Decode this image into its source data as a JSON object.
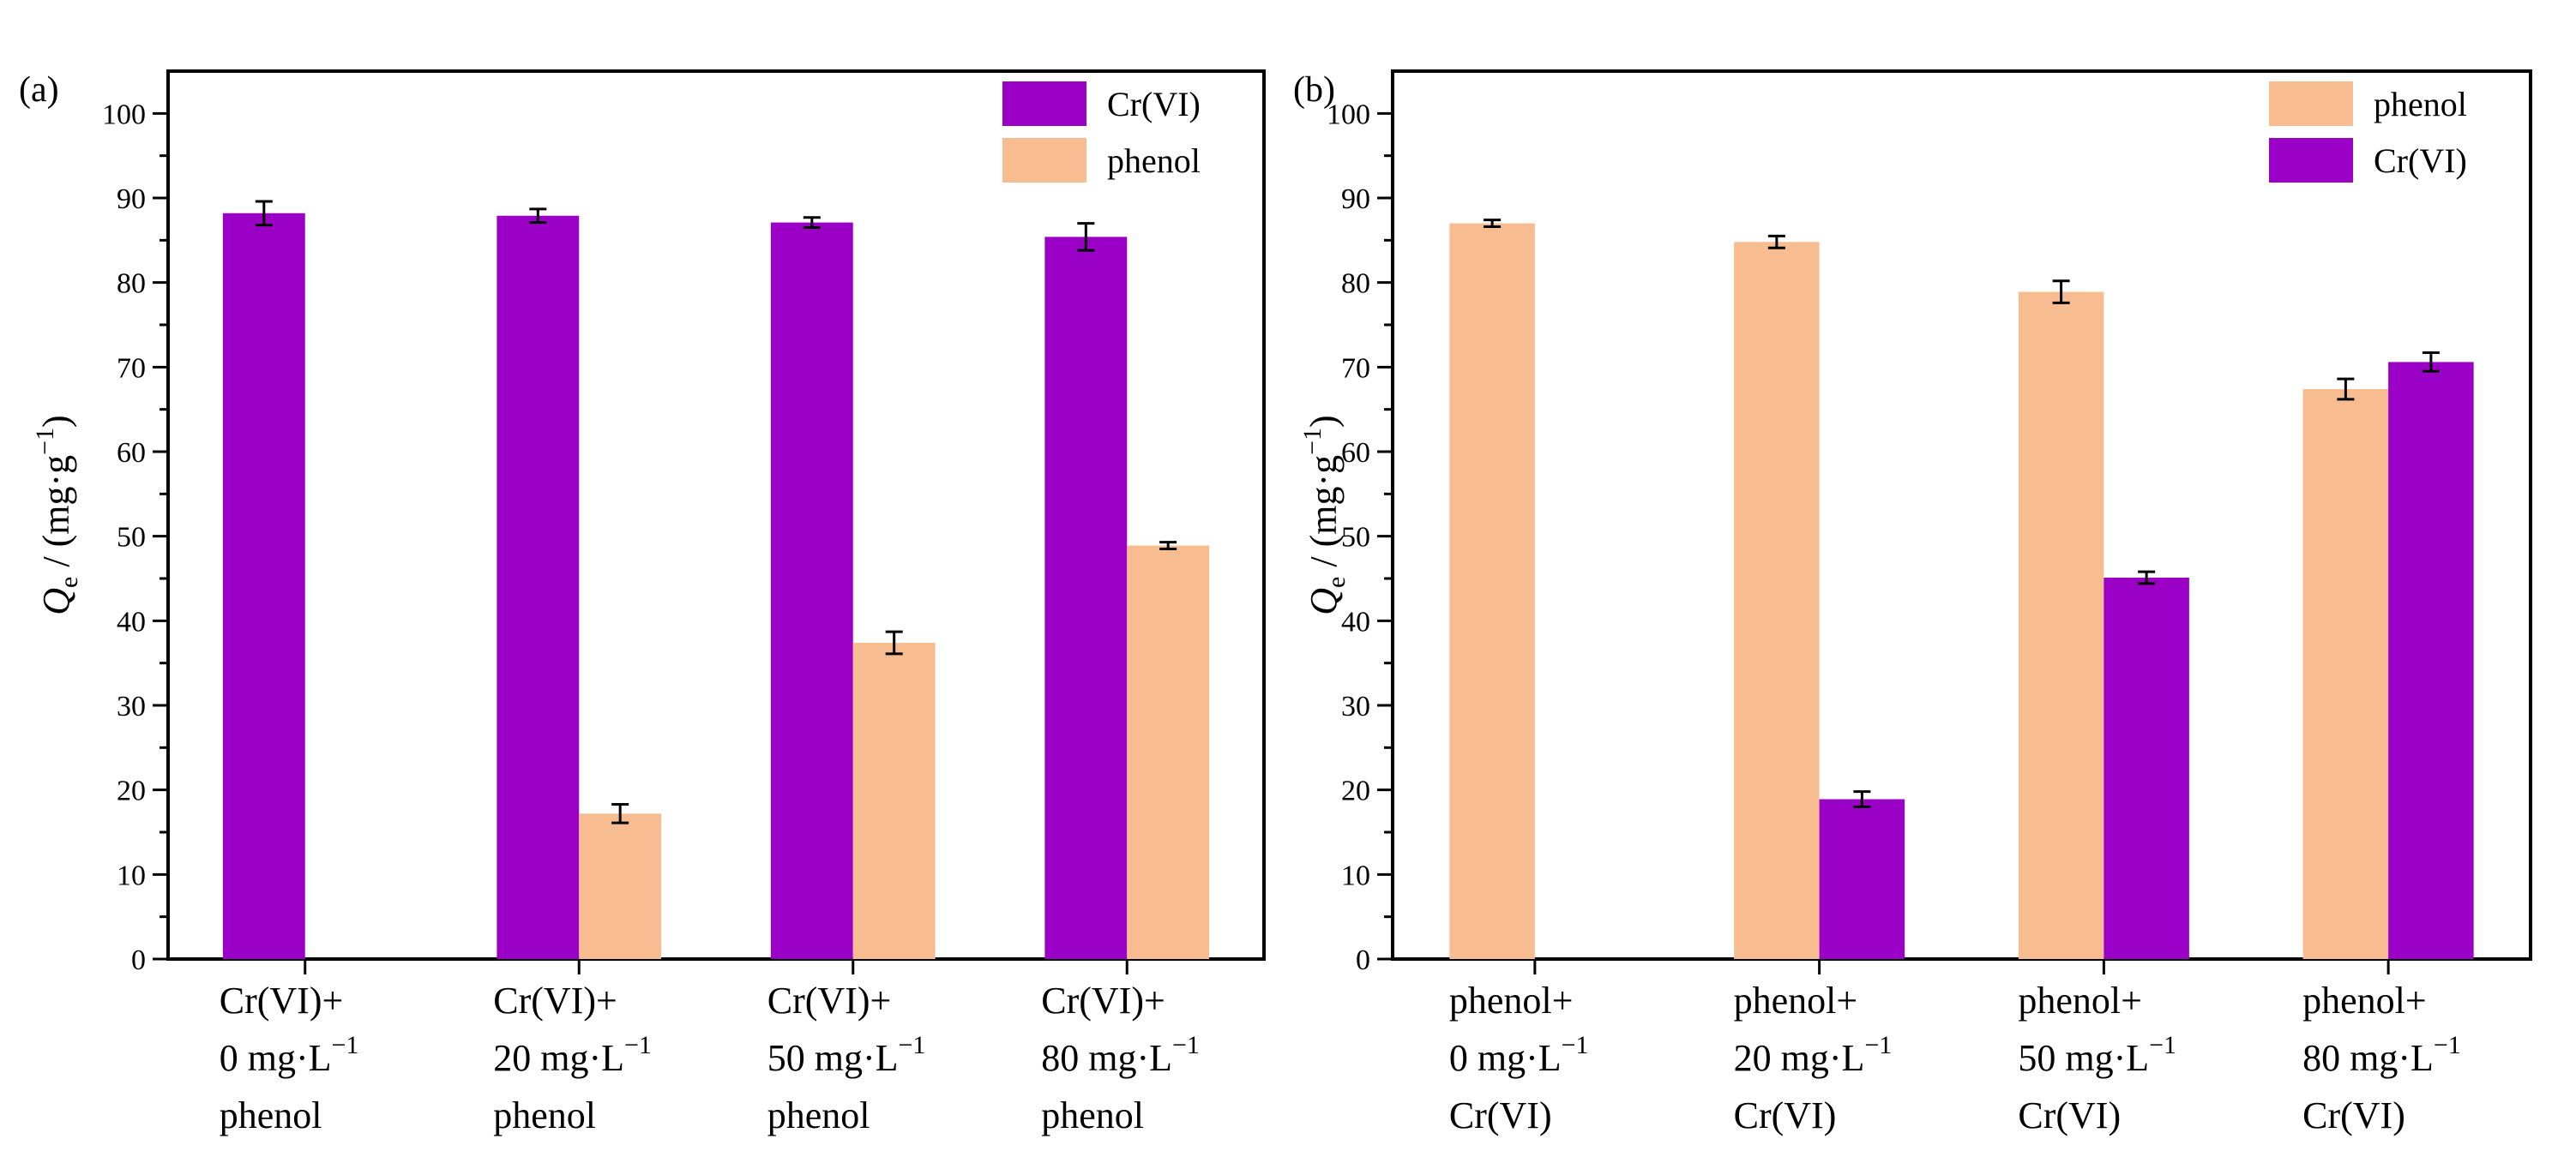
{
  "colors": {
    "cr": "#9B00C6",
    "phenol": "#F7BD90"
  },
  "chart_data": [
    {
      "type": "bar",
      "panel_label": "(a)",
      "ylabel_main": "Q",
      "ylabel_sub": "e",
      "ylabel_unit": " / (mg·g",
      "ylabel_exp": "−1",
      "ylabel_close": ")",
      "ylim": [
        0,
        105
      ],
      "yticks": [
        "0",
        "10",
        "20",
        "30",
        "40",
        "50",
        "60",
        "70",
        "80",
        "90",
        "100"
      ],
      "legend_position": "top-right",
      "categories": [
        {
          "line1": "Cr(VI)+",
          "line2_pre": "0 mg·L",
          "line2_exp": "−1",
          "line3": "phenol"
        },
        {
          "line1": "Cr(VI)+",
          "line2_pre": "20 mg·L",
          "line2_exp": "−1",
          "line3": "phenol"
        },
        {
          "line1": "Cr(VI)+",
          "line2_pre": "50 mg·L",
          "line2_exp": "−1",
          "line3": "phenol"
        },
        {
          "line1": "Cr(VI)+",
          "line2_pre": "80 mg·L",
          "line2_exp": "−1",
          "line3": "phenol"
        }
      ],
      "series": [
        {
          "name": "Cr(VI)",
          "color_key": "cr",
          "values": [
            88.2,
            87.9,
            87.1,
            85.4
          ],
          "errors": [
            1.4,
            0.8,
            0.6,
            1.6
          ]
        },
        {
          "name": "phenol",
          "color_key": "phenol",
          "values": [
            null,
            17.2,
            37.4,
            48.9
          ],
          "errors": [
            null,
            1.1,
            1.3,
            0.4
          ]
        }
      ]
    },
    {
      "type": "bar",
      "panel_label": "(b)",
      "ylabel_main": "Q",
      "ylabel_sub": "e",
      "ylabel_unit": " / (mg·g",
      "ylabel_exp": "−1",
      "ylabel_close": ")",
      "ylim": [
        0,
        105
      ],
      "yticks": [
        "0",
        "10",
        "20",
        "30",
        "40",
        "50",
        "60",
        "70",
        "80",
        "90",
        "100"
      ],
      "legend_position": "top-right",
      "categories": [
        {
          "line1": "phenol+",
          "line2_pre": "0 mg·L",
          "line2_exp": "−1",
          "line3": "Cr(VI)"
        },
        {
          "line1": "phenol+",
          "line2_pre": "20 mg·L",
          "line2_exp": "−1",
          "line3": "Cr(VI)"
        },
        {
          "line1": "phenol+",
          "line2_pre": "50 mg·L",
          "line2_exp": "−1",
          "line3": "Cr(VI)"
        },
        {
          "line1": "phenol+",
          "line2_pre": "80 mg·L",
          "line2_exp": "−1",
          "line3": "Cr(VI)"
        }
      ],
      "series": [
        {
          "name": "phenol",
          "color_key": "phenol",
          "values": [
            87.0,
            84.8,
            78.9,
            67.4
          ],
          "errors": [
            0.4,
            0.7,
            1.3,
            1.2
          ]
        },
        {
          "name": "Cr(VI)",
          "color_key": "cr",
          "values": [
            null,
            18.9,
            45.1,
            70.6
          ],
          "errors": [
            null,
            0.9,
            0.7,
            1.1
          ]
        }
      ]
    }
  ]
}
